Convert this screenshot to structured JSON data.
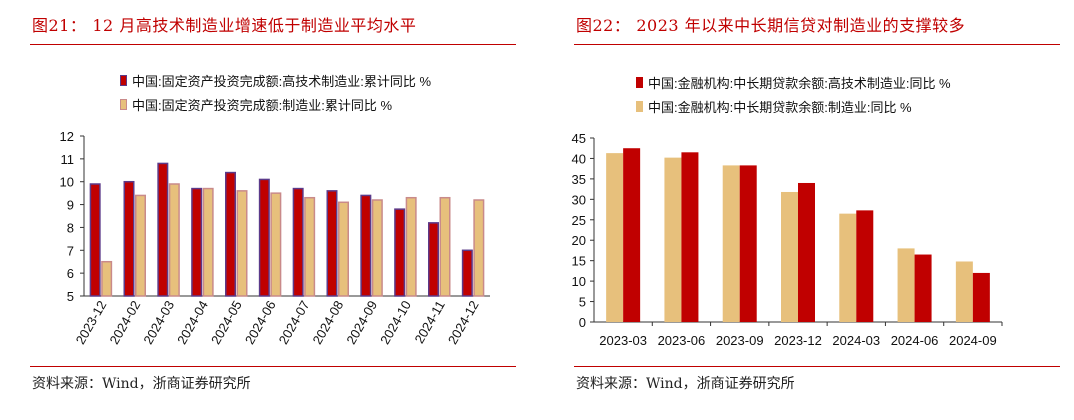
{
  "left": {
    "title_num": "图21：",
    "title_text": "12 月高技术制造业增速低于制造业平均水平",
    "source": "资料来源：Wind，浙商证券研究所",
    "chart_data": {
      "type": "bar",
      "categories": [
        "2023-12",
        "2024-02",
        "2024-03",
        "2024-04",
        "2024-05",
        "2024-06",
        "2024-07",
        "2024-08",
        "2024-09",
        "2024-10",
        "2024-11",
        "2024-12"
      ],
      "series": [
        {
          "name": "中国:固定资产投资完成额:高技术制造业:累计同比 %",
          "color": "#c00000",
          "border": "#5b3a8a",
          "values": [
            9.9,
            10.0,
            10.8,
            9.7,
            10.4,
            10.1,
            9.7,
            9.6,
            9.4,
            8.8,
            8.2,
            7.0
          ]
        },
        {
          "name": "中国:固定资产投资完成额:制造业:累计同比 %",
          "color": "#e7c07c",
          "border": "#c98a8a",
          "values": [
            6.5,
            9.4,
            9.9,
            9.7,
            9.6,
            9.5,
            9.3,
            9.1,
            9.2,
            9.3,
            9.3,
            9.2
          ]
        }
      ],
      "ylim": [
        5,
        12
      ],
      "yticks": [
        "5",
        "6",
        "7",
        "8",
        "9",
        "10",
        "11",
        "12"
      ],
      "xlabel": "",
      "ylabel": "",
      "legend": "top"
    }
  },
  "right": {
    "title_num": "图22：",
    "title_text": "2023 年以来中长期信贷对制造业的支撑较多",
    "source": "资料来源：Wind，浙商证券研究所",
    "chart_data": {
      "type": "bar",
      "categories": [
        "2023-03",
        "2023-06",
        "2023-09",
        "2023-12",
        "2024-03",
        "2024-06",
        "2024-09"
      ],
      "series": [
        {
          "name": "中国:金融机构:中长期贷款余额:高技术制造业:同比 %",
          "color": "#c00000",
          "values": [
            42.5,
            41.5,
            38.3,
            34.0,
            27.3,
            16.5,
            12.0
          ]
        },
        {
          "name": "中国:金融机构:中长期贷款余额:制造业:同比 %",
          "color": "#e7c07c",
          "values": [
            41.3,
            40.2,
            38.3,
            31.8,
            26.5,
            18.0,
            14.8
          ]
        }
      ],
      "ylim": [
        0,
        45
      ],
      "yticks": [
        "0",
        "5",
        "10",
        "15",
        "20",
        "25",
        "30",
        "35",
        "40",
        "45"
      ],
      "xlabel": "",
      "ylabel": "",
      "legend": "top"
    }
  }
}
